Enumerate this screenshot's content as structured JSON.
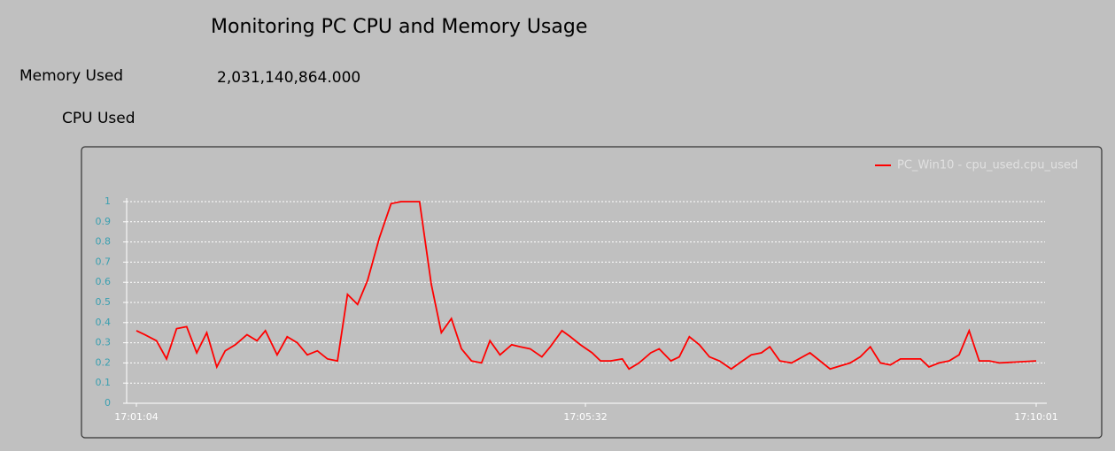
{
  "header": {
    "title": "Monitoring PC CPU and Memory Usage",
    "memory_label": "Memory Used",
    "memory_value": "2,031,140,864.000",
    "cpu_label": "CPU Used"
  },
  "chart_data": {
    "type": "line",
    "x": [
      "17:01:04",
      "17:01:09",
      "17:01:16",
      "17:01:22",
      "17:01:28",
      "17:01:34",
      "17:01:40",
      "17:01:46",
      "17:01:52",
      "17:01:57",
      "17:02:03",
      "17:02:10",
      "17:02:16",
      "17:02:21",
      "17:02:28",
      "17:02:34",
      "17:02:40",
      "17:02:46",
      "17:02:52",
      "17:02:58",
      "17:03:04",
      "17:03:10",
      "17:03:16",
      "17:03:22",
      "17:03:29",
      "17:03:36",
      "17:03:42",
      "17:03:48",
      "17:03:53",
      "17:04:00",
      "17:04:06",
      "17:04:12",
      "17:04:18",
      "17:04:24",
      "17:04:30",
      "17:04:35",
      "17:04:41",
      "17:04:48",
      "17:04:53",
      "17:04:59",
      "17:05:06",
      "17:05:11",
      "17:05:18",
      "17:05:23",
      "17:05:29",
      "17:05:36",
      "17:05:41",
      "17:05:47",
      "17:05:54",
      "17:05:58",
      "17:06:04",
      "17:06:11",
      "17:06:16",
      "17:06:23",
      "17:06:28",
      "17:06:34",
      "17:06:40",
      "17:06:46",
      "17:06:52",
      "17:06:59",
      "17:07:04",
      "17:07:11",
      "17:07:17",
      "17:07:22",
      "17:07:28",
      "17:07:35",
      "17:07:46",
      "17:07:58",
      "17:08:10",
      "17:08:16",
      "17:08:22",
      "17:08:28",
      "17:08:34",
      "17:08:40",
      "17:08:46",
      "17:08:52",
      "17:08:57",
      "17:09:03",
      "17:09:09",
      "17:09:15",
      "17:09:21",
      "17:09:27",
      "17:09:33",
      "17:09:39",
      "17:10:01"
    ],
    "series": [
      {
        "name": "PC_Win10 - cpu_used.cpu_used",
        "color": "#ff0000",
        "values": [
          0.36,
          0.34,
          0.31,
          0.22,
          0.37,
          0.38,
          0.25,
          0.35,
          0.18,
          0.26,
          0.29,
          0.34,
          0.31,
          0.36,
          0.24,
          0.33,
          0.3,
          0.24,
          0.26,
          0.22,
          0.21,
          0.54,
          0.49,
          0.61,
          0.82,
          0.99,
          1.0,
          1.0,
          1.0,
          0.59,
          0.35,
          0.42,
          0.27,
          0.21,
          0.2,
          0.31,
          0.24,
          0.29,
          0.28,
          0.27,
          0.23,
          0.28,
          0.36,
          0.33,
          0.29,
          0.25,
          0.21,
          0.21,
          0.22,
          0.17,
          0.2,
          0.25,
          0.27,
          0.21,
          0.23,
          0.33,
          0.29,
          0.23,
          0.21,
          0.17,
          0.2,
          0.24,
          0.25,
          0.28,
          0.21,
          0.2,
          0.25,
          0.17,
          0.2,
          0.23,
          0.28,
          0.2,
          0.19,
          0.22,
          0.22,
          0.22,
          0.18,
          0.2,
          0.21,
          0.24,
          0.36,
          0.21,
          0.21,
          0.2,
          0.21
        ]
      }
    ],
    "xlim": [
      "17:01:04",
      "17:10:01"
    ],
    "xticks": [
      "17:01:04",
      "17:05:32",
      "17:10:01"
    ],
    "ylim": [
      0,
      1
    ],
    "yticks": [
      0,
      0.1,
      0.2,
      0.3,
      0.4,
      0.5,
      0.6,
      0.7,
      0.8,
      0.9,
      1
    ],
    "grid": true,
    "legend": "top-right"
  }
}
